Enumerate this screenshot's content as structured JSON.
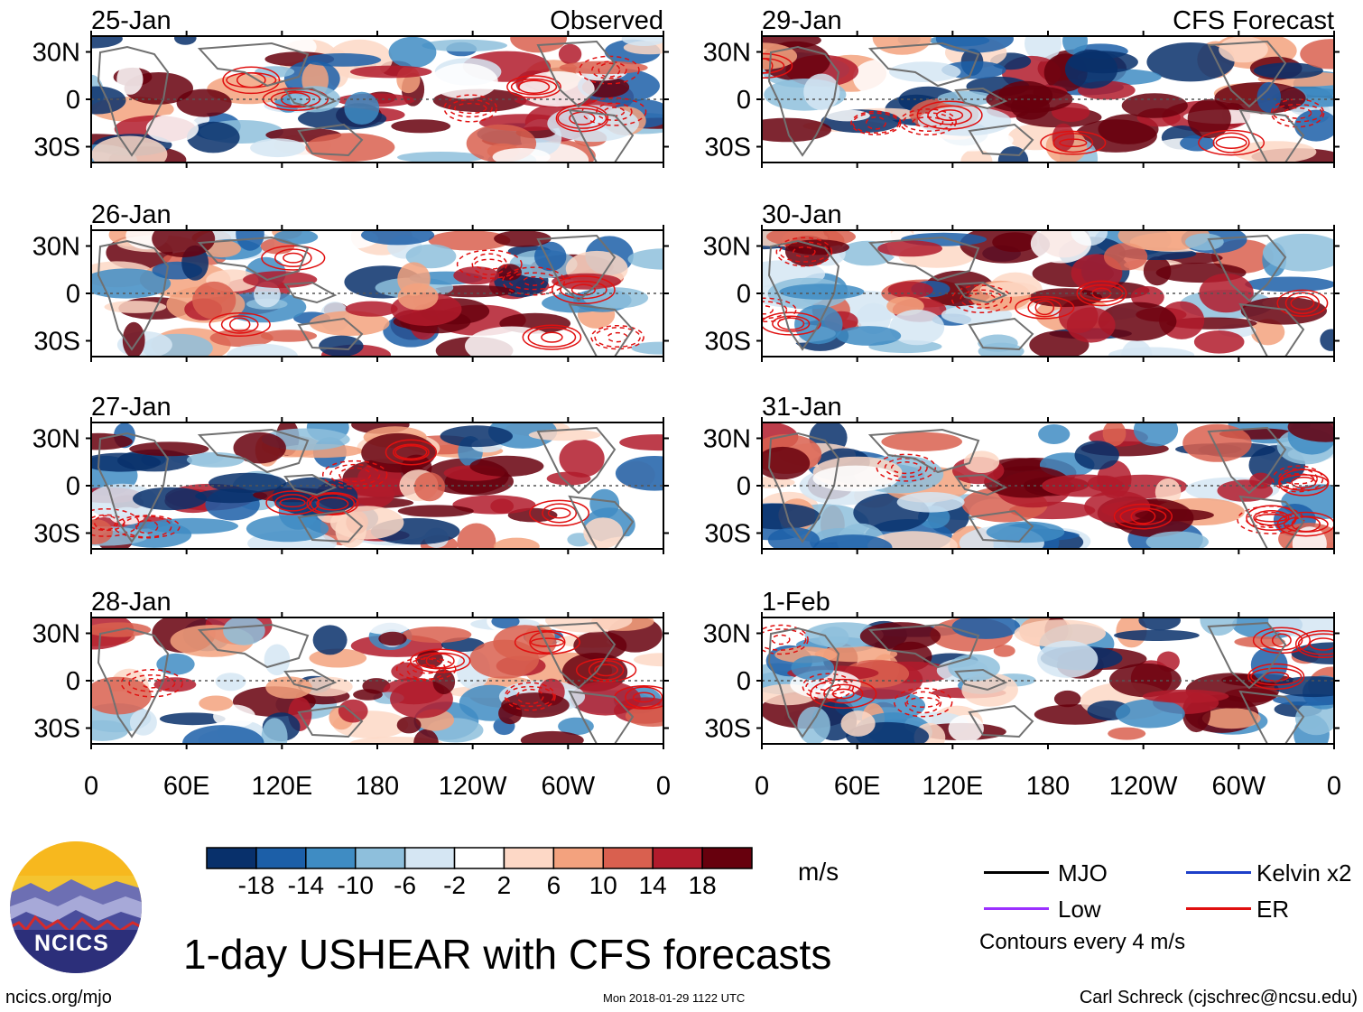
{
  "chart_data": {
    "type": "heatmap",
    "title": "1-day USHEAR with CFS forecasts",
    "units": "m/s",
    "lat_ticks": [
      "30N",
      "0",
      "30S"
    ],
    "lon_ticks": [
      "0",
      "60E",
      "120E",
      "180",
      "120W",
      "60W",
      "0"
    ],
    "lat_range": [
      -40,
      40
    ],
    "lon_range": [
      0,
      360
    ],
    "columns": [
      {
        "header": "Observed",
        "panels": [
          "25-Jan",
          "26-Jan",
          "27-Jan",
          "28-Jan"
        ]
      },
      {
        "header": "CFS Forecast",
        "panels": [
          "29-Jan",
          "30-Jan",
          "31-Jan",
          "1-Feb"
        ]
      }
    ],
    "colorbar": {
      "ticks": [
        "-18",
        "-14",
        "-10",
        "-6",
        "-2",
        "2",
        "6",
        "10",
        "14",
        "18"
      ],
      "colors": [
        "#08306b",
        "#1c5fa8",
        "#3f8cc3",
        "#8ebfdc",
        "#d5e6f3",
        "#ffffff",
        "#fdd8c6",
        "#f3a27e",
        "#d9604f",
        "#b11b2c",
        "#67000d"
      ]
    },
    "contour_legend": [
      {
        "label": "MJO",
        "color": "#000000"
      },
      {
        "label": "Kelvin x2",
        "color": "#1d3fc9"
      },
      {
        "label": "Low",
        "color": "#9b30ff"
      },
      {
        "label": "ER",
        "color": "#e01010"
      }
    ],
    "contour_note": "Contours every 4 m/s"
  },
  "footer": {
    "site": "ncics.org/mjo",
    "timestamp": "Mon 2018-01-29 1122 UTC",
    "credit": "Carl Schreck (cjschrec@ncsu.edu)"
  },
  "logo": {
    "text": "NCICS"
  }
}
